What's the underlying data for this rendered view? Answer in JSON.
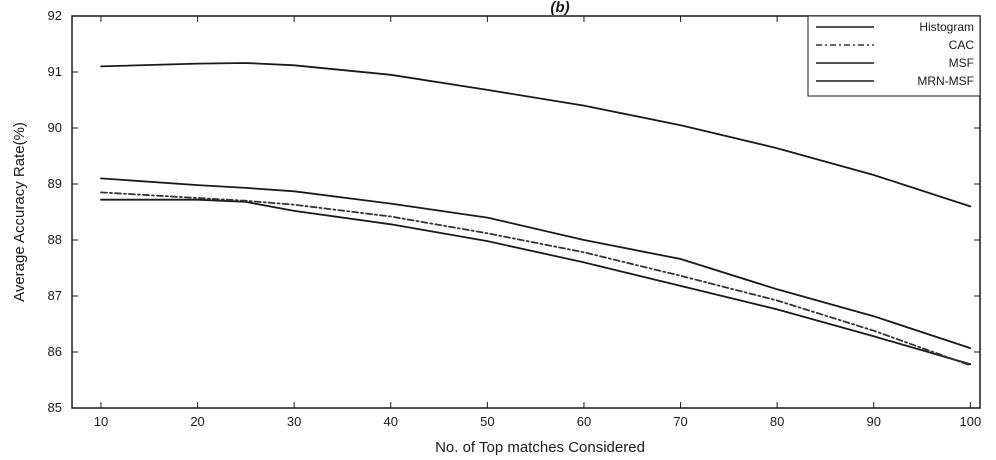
{
  "chart_data": {
    "type": "line",
    "title": "(b)",
    "xlabel": "No. of Top matches Considered",
    "ylabel": "Average Accuracy Rate(%)",
    "x": [
      10,
      20,
      25,
      30,
      40,
      50,
      60,
      70,
      80,
      90,
      100
    ],
    "xlim": [
      7,
      101
    ],
    "ylim": [
      85,
      92
    ],
    "xticks": [
      10,
      20,
      30,
      40,
      50,
      60,
      70,
      80,
      90,
      100
    ],
    "yticks": [
      85,
      86,
      87,
      88,
      89,
      90,
      91,
      92
    ],
    "grid": false,
    "legend_position": "top-right",
    "series": [
      {
        "name": "Histogram",
        "values": [
          88.72,
          88.72,
          88.68,
          88.52,
          88.28,
          87.98,
          87.6,
          87.18,
          86.76,
          86.28,
          85.78
        ],
        "color": "#1a1a1a",
        "dash": ""
      },
      {
        "name": "CAC",
        "values": [
          88.85,
          88.75,
          88.7,
          88.63,
          88.42,
          88.12,
          87.78,
          87.36,
          86.92,
          86.38,
          85.76
        ],
        "color": "#333333",
        "dash": "6 3 2 3"
      },
      {
        "name": "MSF",
        "values": [
          89.1,
          88.98,
          88.93,
          88.87,
          88.65,
          88.4,
          88.0,
          87.66,
          87.12,
          86.64,
          86.07
        ],
        "color": "#1a1a1a",
        "dash": ""
      },
      {
        "name": "MRN-MSF",
        "values": [
          91.1,
          91.15,
          91.16,
          91.12,
          90.95,
          90.68,
          90.4,
          90.05,
          89.64,
          89.16,
          88.6
        ],
        "color": "#1a1a1a",
        "dash": ""
      }
    ]
  }
}
